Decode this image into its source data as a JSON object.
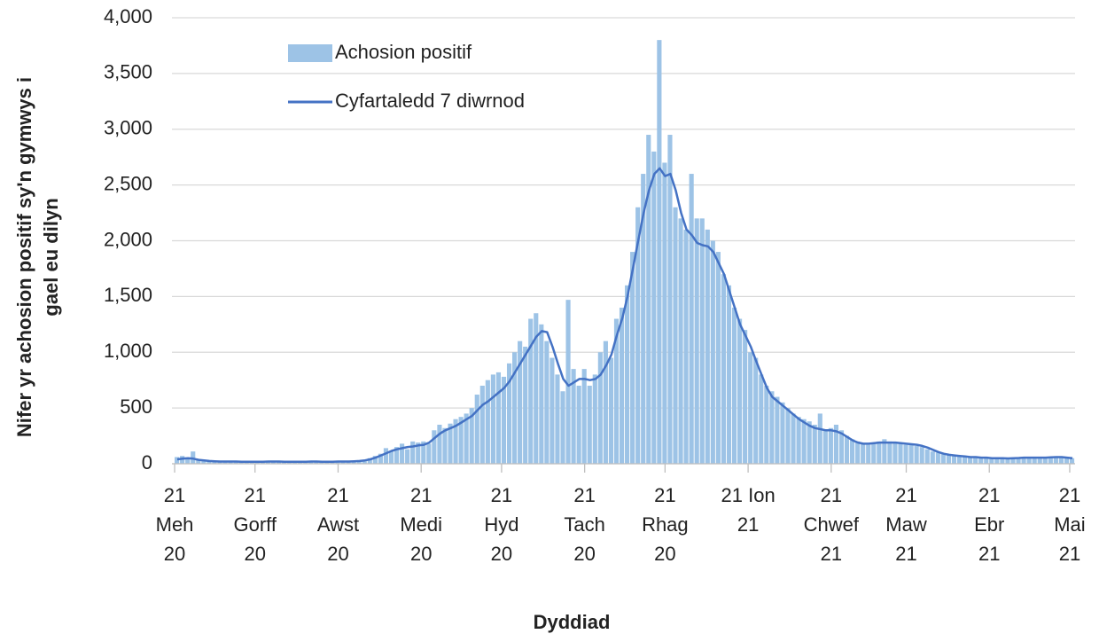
{
  "chart_data": {
    "type": "bar-line",
    "x_label": "Dyddiad",
    "y_label": "Nifer yr achosion positif sy'n gymwys i\ngael eu dilyn",
    "x": [
      0,
      2,
      4,
      6,
      8,
      10,
      12,
      14,
      16,
      18,
      20,
      22,
      24,
      26,
      28,
      30,
      32,
      34,
      36,
      38,
      40,
      42,
      44,
      46,
      48,
      50,
      52,
      54,
      56,
      58,
      60,
      62,
      64,
      66,
      68,
      70,
      72,
      74,
      76,
      78,
      80,
      82,
      84,
      86,
      88,
      90,
      92,
      94,
      96,
      98,
      100,
      102,
      104,
      106,
      108,
      110,
      112,
      114,
      116,
      118,
      120,
      122,
      124,
      126,
      128,
      130,
      132,
      134,
      136,
      138,
      140,
      142,
      144,
      146,
      148,
      150,
      152,
      154,
      156,
      158,
      160,
      162,
      164,
      166,
      168,
      170,
      172,
      174,
      176,
      178,
      180,
      182,
      184,
      186,
      188,
      190,
      192,
      194,
      196,
      198,
      200,
      202,
      204,
      206,
      208,
      210,
      212,
      214,
      216,
      218,
      220,
      222,
      224,
      226,
      228,
      230,
      232,
      234,
      236,
      238,
      240,
      242,
      244,
      246,
      248,
      250,
      252,
      254,
      256,
      258,
      260,
      262,
      264,
      266,
      268,
      270,
      272,
      274,
      276,
      278,
      280,
      282,
      284,
      286,
      288,
      290,
      292,
      294,
      296,
      298,
      300,
      302,
      304,
      306,
      308,
      310,
      312,
      314,
      316,
      318,
      320,
      322,
      324,
      326,
      328,
      330,
      332,
      334
    ],
    "series": [
      {
        "name": "Achosion positif",
        "type": "bar",
        "color": "#9dc3e6",
        "values": [
          60,
          70,
          40,
          110,
          40,
          25,
          20,
          20,
          20,
          15,
          20,
          25,
          15,
          20,
          15,
          20,
          15,
          25,
          20,
          15,
          20,
          15,
          20,
          15,
          20,
          25,
          15,
          20,
          15,
          20,
          25,
          15,
          25,
          20,
          30,
          35,
          50,
          70,
          90,
          140,
          110,
          150,
          180,
          130,
          200,
          190,
          200,
          180,
          300,
          350,
          320,
          360,
          400,
          420,
          450,
          500,
          620,
          700,
          750,
          800,
          820,
          780,
          900,
          1000,
          1100,
          1050,
          1300,
          1350,
          1250,
          1100,
          950,
          800,
          650,
          1470,
          850,
          700,
          850,
          700,
          800,
          1000,
          1100,
          950,
          1300,
          1400,
          1600,
          1900,
          2300,
          2600,
          2950,
          2800,
          3800,
          2700,
          2950,
          2300,
          2200,
          2100,
          2600,
          2200,
          2200,
          2100,
          2000,
          1900,
          1700,
          1600,
          1400,
          1300,
          1200,
          1000,
          950,
          800,
          700,
          650,
          600,
          550,
          500,
          450,
          420,
          400,
          380,
          350,
          450,
          300,
          320,
          350,
          300,
          250,
          220,
          200,
          180,
          170,
          190,
          200,
          220,
          200,
          190,
          180,
          170,
          180,
          160,
          150,
          130,
          110,
          100,
          90,
          80,
          80,
          75,
          70,
          65,
          65,
          60,
          60,
          55,
          50,
          55,
          50,
          50,
          55,
          60,
          55,
          60,
          50,
          55,
          60,
          65,
          60,
          55,
          50
        ]
      },
      {
        "name": "Cyfartaledd 7 diwrnod",
        "type": "line",
        "color": "#4472c4",
        "values": [
          40,
          45,
          50,
          45,
          35,
          30,
          25,
          22,
          20,
          20,
          20,
          20,
          18,
          18,
          18,
          18,
          18,
          20,
          20,
          20,
          18,
          18,
          18,
          18,
          18,
          20,
          20,
          18,
          18,
          18,
          20,
          20,
          20,
          22,
          25,
          30,
          40,
          55,
          75,
          95,
          115,
          130,
          140,
          150,
          155,
          165,
          170,
          190,
          230,
          270,
          300,
          320,
          340,
          370,
          400,
          430,
          480,
          530,
          560,
          600,
          640,
          680,
          740,
          820,
          900,
          980,
          1060,
          1140,
          1190,
          1180,
          1050,
          900,
          760,
          700,
          730,
          760,
          760,
          750,
          760,
          800,
          880,
          980,
          1150,
          1300,
          1500,
          1750,
          2000,
          2250,
          2450,
          2600,
          2650,
          2580,
          2600,
          2450,
          2250,
          2100,
          2050,
          1980,
          1960,
          1950,
          1900,
          1800,
          1700,
          1550,
          1400,
          1250,
          1150,
          1050,
          920,
          800,
          680,
          600,
          560,
          520,
          480,
          440,
          400,
          370,
          340,
          320,
          310,
          300,
          300,
          290,
          270,
          240,
          210,
          190,
          180,
          180,
          185,
          190,
          190,
          190,
          190,
          185,
          180,
          175,
          170,
          160,
          145,
          125,
          105,
          90,
          80,
          75,
          70,
          65,
          60,
          60,
          55,
          55,
          50,
          50,
          50,
          48,
          50,
          52,
          55,
          55,
          55,
          55,
          55,
          58,
          60,
          60,
          55,
          50
        ]
      }
    ],
    "xlim": [
      -1,
      336
    ],
    "xticks": [
      {
        "value": 0,
        "label": "21\nMeh\n20"
      },
      {
        "value": 30,
        "label": "21\nGorff\n20"
      },
      {
        "value": 61,
        "label": "21\nAwst\n20"
      },
      {
        "value": 92,
        "label": "21\nMedi\n20"
      },
      {
        "value": 122,
        "label": "21\nHyd\n20"
      },
      {
        "value": 153,
        "label": "21\nTach\n20"
      },
      {
        "value": 183,
        "label": "21\nRhag\n20"
      },
      {
        "value": 214,
        "label": "21 Ion\n21"
      },
      {
        "value": 245,
        "label": "21\nChwef\n21"
      },
      {
        "value": 273,
        "label": "21\nMaw\n21"
      },
      {
        "value": 304,
        "label": "21\nEbr\n21"
      },
      {
        "value": 334,
        "label": "21\nMai\n21"
      }
    ],
    "ylim": [
      0,
      4000
    ],
    "yticks": [
      0,
      500,
      {
        "value": 1000,
        "label": "1,000"
      },
      {
        "value": 1500,
        "label": "1,500"
      },
      {
        "value": 2000,
        "label": "2,000"
      },
      {
        "value": 2500,
        "label": "2,500"
      },
      {
        "value": 3000,
        "label": "3,000"
      },
      {
        "value": 3500,
        "label": "3,500"
      },
      {
        "value": 4000,
        "label": "4,000"
      }
    ],
    "grid": true,
    "legend": "top-left"
  }
}
